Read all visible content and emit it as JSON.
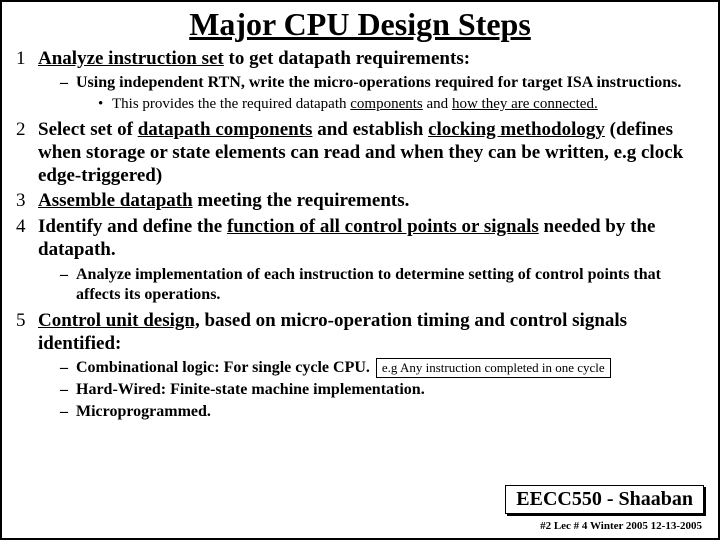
{
  "title": "Major CPU Design Steps",
  "items": [
    {
      "num": "1",
      "text_plain": "Analyze instruction set",
      "text_rest": " to get datapath requirements:",
      "dashes": [
        {
          "text": "Using independent RTN, write the micro-operations required for target ISA instructions.",
          "dots": [
            {
              "before": "This provides the the required datapath ",
              "u1": "components",
              "mid": " and ",
              "u2": "how they are connected."
            }
          ]
        }
      ]
    },
    {
      "num": "2",
      "before": "Select set of ",
      "u1": "datapath components",
      "mid": " and establish ",
      "u2": "clocking methodology",
      "rest": " (defines when storage or state elements can read and when they can be written, e.g clock edge-triggered)"
    },
    {
      "num": "3",
      "u1": "Assemble datapath",
      "rest": " meeting the requirements."
    },
    {
      "num": "4",
      "before": "Identify and define the ",
      "u1": "function of all control points or signals",
      "rest": " needed by the datapath.",
      "dashes": [
        {
          "text": "Analyze implementation of each instruction to determine setting of control points that affects its operations."
        }
      ]
    },
    {
      "num": "5",
      "u1": "Control unit design,",
      "rest": " based on micro-operation timing and control signals identified:",
      "dashes": [
        {
          "text": "Combinational logic: For single cycle CPU.",
          "box": "e.g Any instruction completed in one cycle"
        },
        {
          "text": "Hard-Wired:  Finite-state machine implementation."
        },
        {
          "text": "Microprogrammed."
        }
      ]
    }
  ],
  "course_box": "EECC550 - Shaaban",
  "footer": "#2   Lec # 4   Winter 2005   12-13-2005"
}
